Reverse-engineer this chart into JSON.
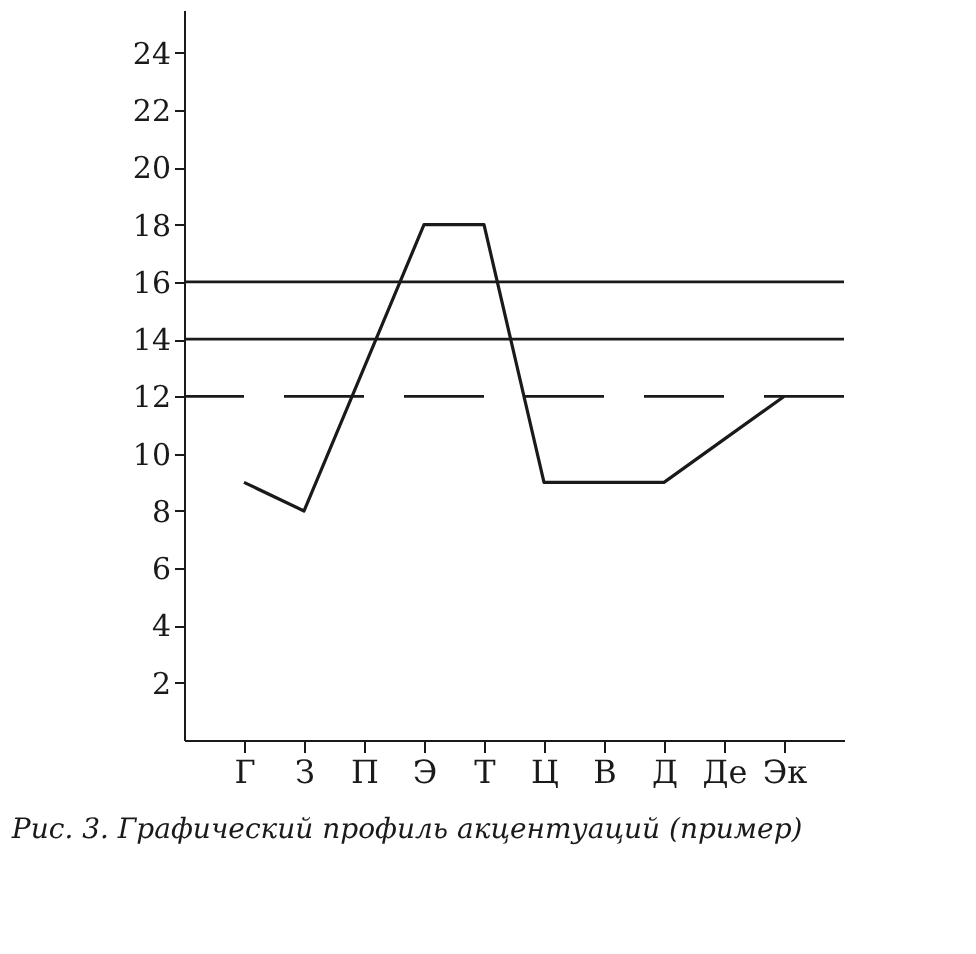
{
  "chart_data": {
    "type": "line",
    "categories": [
      "Г",
      "З",
      "П",
      "Э",
      "Т",
      "Ц",
      "В",
      "Д",
      "Де",
      "Эк"
    ],
    "series": [
      {
        "color": "#1a1a1a",
        "values": [
          9,
          8,
          13,
          18,
          18,
          9,
          9,
          9,
          10.5,
          12
        ]
      }
    ],
    "ylim": [
      0,
      25.5
    ],
    "yticks": [
      2,
      4,
      6,
      8,
      10,
      12,
      14,
      16,
      18,
      20,
      22,
      24
    ],
    "ref_lines": [
      {
        "axis": "y",
        "value": 16,
        "color": "#1a1a1a",
        "line_style": "solid"
      },
      {
        "axis": "y",
        "value": 14,
        "color": "#1a1a1a",
        "line_style": "solid"
      },
      {
        "axis": "y",
        "value": 12,
        "color": "#1a1a1a",
        "line_style": "dashed"
      }
    ],
    "annotations": [
      "Рис. 3. Графический профиль акцентуаций (пример)"
    ],
    "grid": false,
    "marker": "none"
  }
}
